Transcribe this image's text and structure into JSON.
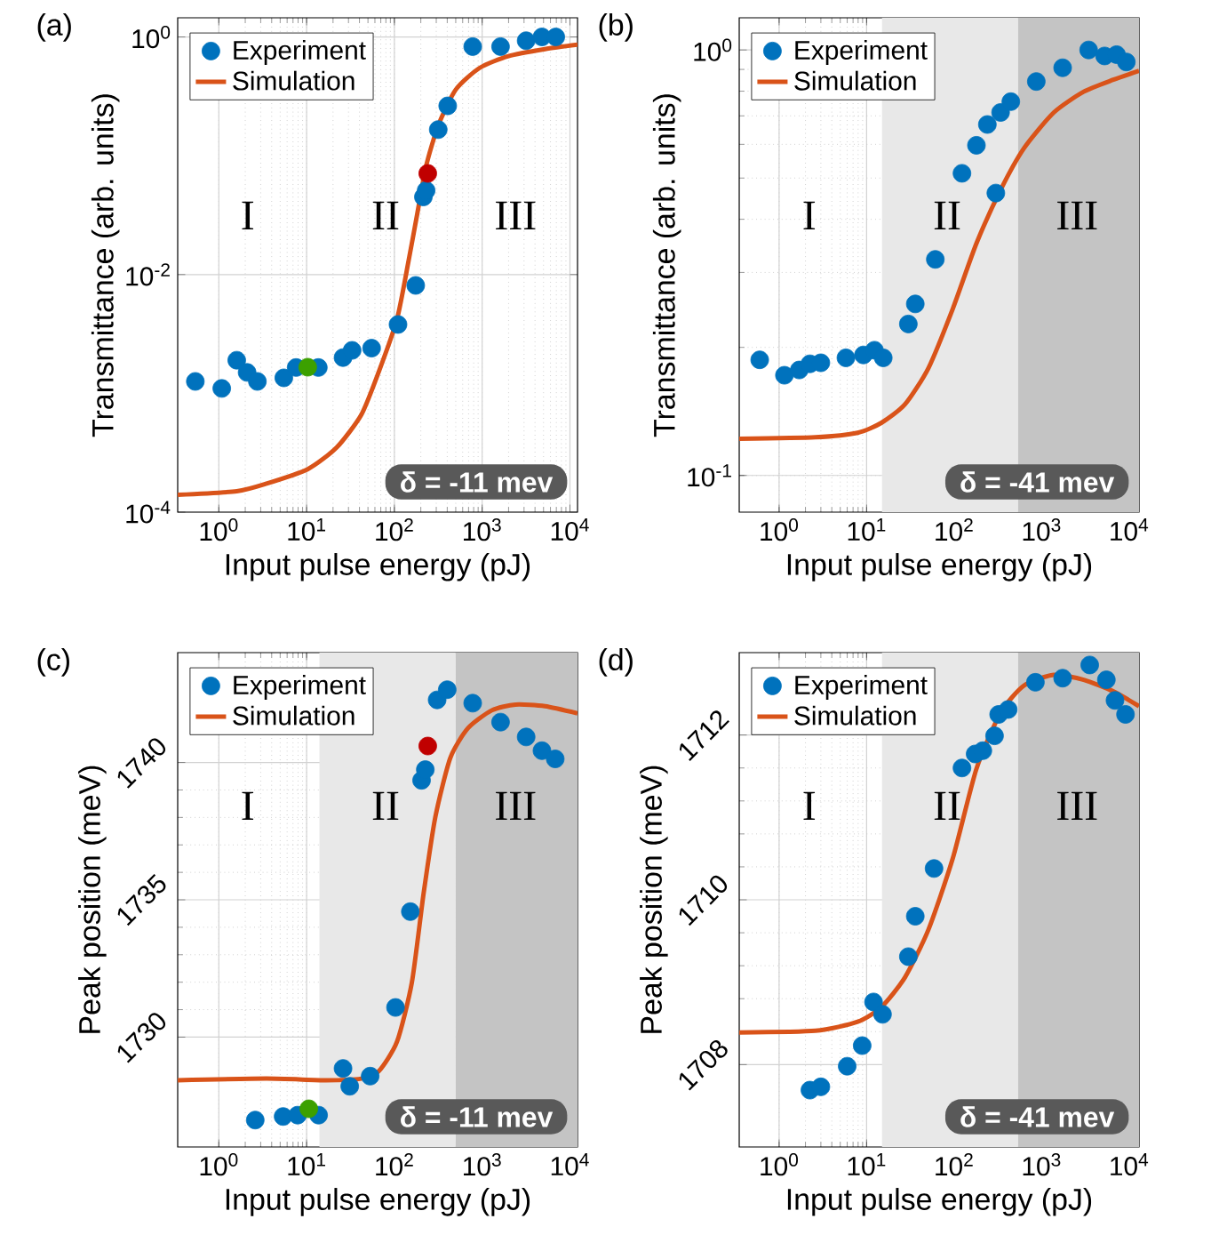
{
  "chart_data": [
    {
      "type": "scatter",
      "title": "(a)",
      "xlabel": "Input pulse energy (pJ)",
      "ylabel": "Transmittance (arb. units)",
      "log": "xy",
      "grid": true,
      "legend": "top left",
      "xlim": [
        0.34,
        12200
      ],
      "ylim": [
        0.0001,
        1.45
      ],
      "xticks": [
        {
          "value": 1,
          "label": "10$^{0}$"
        },
        {
          "value": 10,
          "label": "10$^{1}$"
        },
        {
          "value": 100,
          "label": "10$^{2}$"
        },
        {
          "value": 1000,
          "label": "10$^{3}$"
        },
        {
          "value": 10000,
          "label": "10$^{4}$"
        }
      ],
      "yticks": [
        {
          "value": 0.0001,
          "label": "10$^{-4}$"
        },
        {
          "value": 0.01,
          "label": "10$^{-2}$"
        },
        {
          "value": 1,
          "label": "10$^{0}$"
        }
      ],
      "series": [
        {
          "name": "Experiment",
          "type": "scatter",
          "color": "#0072bd",
          "x": [
            0.54,
            1.08,
            1.6,
            2.1,
            2.75,
            5.5,
            7.6,
            13.6,
            26,
            33,
            55,
            110,
            175,
            214,
            230,
            316,
            405,
            780,
            1620,
            3170,
            4800,
            6900
          ],
          "values": [
            0.00126,
            0.0011,
            0.0019,
            0.0015,
            0.00126,
            0.00135,
            0.00165,
            0.00165,
            0.002,
            0.0023,
            0.0024,
            0.0038,
            0.0081,
            0.045,
            0.051,
            0.166,
            0.263,
            0.83,
            0.83,
            0.93,
            1,
            1
          ]
        },
        {
          "name": "Simulation",
          "type": "line",
          "color": "#d95319",
          "x": [
            0.34,
            1.6,
            3.5,
            10.3,
            22,
            42,
            66,
            107,
            145,
            183,
            230,
            316,
            500,
            940,
            2000,
            5200,
            12200
          ],
          "values": [
            0.00014,
            0.00015,
            0.000174,
            0.00023,
            0.00035,
            0.00066,
            0.0015,
            0.0042,
            0.013,
            0.033,
            0.082,
            0.18,
            0.36,
            0.55,
            0.69,
            0.79,
            0.86
          ]
        },
        {
          "type": "scatter",
          "color": "#3ca000",
          "x": [
            10.3
          ],
          "values": [
            0.00166
          ]
        },
        {
          "type": "scatter",
          "color": "#c00000",
          "x": [
            240
          ],
          "values": [
            0.071
          ]
        }
      ],
      "annotations": [
        "I",
        "II",
        "III",
        "δ = -11 mev"
      ]
    },
    {
      "type": "scatter",
      "title": "(b)",
      "xlabel": "Input pulse energy (pJ)",
      "ylabel": "Transmittance (arb. units)",
      "log": "xy",
      "grid": true,
      "legend": "top left",
      "xlim": [
        0.35,
        13000
      ],
      "ylim": [
        0.082,
        1.19
      ],
      "xticks": [
        {
          "value": 1,
          "label": "10$^{0}$"
        },
        {
          "value": 10,
          "label": "10$^{1}$"
        },
        {
          "value": 100,
          "label": "10$^{2}$"
        },
        {
          "value": 1000,
          "label": "10$^{3}$"
        },
        {
          "value": 10000,
          "label": "10$^{4}$"
        }
      ],
      "yticks": [
        {
          "value": 0.1,
          "label": "10$^{-1}$"
        },
        {
          "value": 1,
          "label": "10$^{0}$"
        }
      ],
      "bands": [
        {
          "axis": "x",
          "from": 15,
          "to": 540,
          "color": "#e8e8e8"
        },
        {
          "axis": "x",
          "from": 540,
          "to": 13000,
          "color": "#c4c4c4"
        }
      ],
      "series": [
        {
          "name": "Experiment",
          "type": "scatter",
          "color": "#0072bd",
          "x": [
            0.6,
            1.15,
            1.7,
            2.25,
            3.0,
            5.8,
            9.2,
            12.3,
            15.5,
            30,
            36,
            61,
            123,
            180,
            240,
            300,
            340,
            445,
            870,
            1740,
            3450,
            5250,
            7200,
            9300
          ],
          "values": [
            0.187,
            0.172,
            0.177,
            0.183,
            0.184,
            0.189,
            0.192,
            0.197,
            0.189,
            0.227,
            0.253,
            0.322,
            0.513,
            0.597,
            0.668,
            0.461,
            0.713,
            0.756,
            0.843,
            0.908,
            1.0,
            0.968,
            0.975,
            0.937
          ]
        },
        {
          "name": "Simulation",
          "type": "line",
          "color": "#d95319",
          "x": [
            0.35,
            2.6,
            7.9,
            14.8,
            27.5,
            51,
            97,
            180,
            340,
            630,
            1380,
            3030,
            6600,
            13000
          ],
          "values": [
            0.122,
            0.123,
            0.126,
            0.133,
            0.147,
            0.179,
            0.247,
            0.351,
            0.469,
            0.588,
            0.713,
            0.798,
            0.851,
            0.893
          ]
        }
      ],
      "annotations": [
        "I",
        "II",
        "III",
        "δ = -41 mev"
      ]
    },
    {
      "type": "scatter",
      "title": "(c)",
      "xlabel": "Input pulse energy (pJ)",
      "ylabel": "Peak position (meV)",
      "log": "x",
      "grid": true,
      "legend": "top left",
      "xlim": [
        0.34,
        12200
      ],
      "ylim": [
        1726,
        1744
      ],
      "xticks": [
        {
          "value": 1,
          "label": "10$^{0}$"
        },
        {
          "value": 10,
          "label": "10$^{1}$"
        },
        {
          "value": 100,
          "label": "10$^{2}$"
        },
        {
          "value": 1000,
          "label": "10$^{3}$"
        },
        {
          "value": 10000,
          "label": "10$^{4}$"
        }
      ],
      "yticks": [
        1730,
        1735,
        1740
      ],
      "bands": [
        {
          "axis": "x",
          "from": 14,
          "to": 500,
          "color": "#e8e8e8"
        },
        {
          "axis": "x",
          "from": 500,
          "to": 12200,
          "color": "#c4c4c4"
        }
      ],
      "series": [
        {
          "name": "Experiment",
          "type": "scatter",
          "color": "#0072bd",
          "x": [
            2.6,
            5.4,
            7.9,
            13.7,
            26,
            31,
            53,
            103,
            152,
            204,
            225,
            307,
            400,
            780,
            1620,
            3170,
            4800,
            6800
          ],
          "values": [
            1726.98,
            1727.11,
            1727.16,
            1727.16,
            1728.86,
            1728.21,
            1728.58,
            1731.08,
            1734.57,
            1739.35,
            1739.74,
            1742.28,
            1742.65,
            1742.16,
            1741.47,
            1740.93,
            1740.43,
            1740.13
          ]
        },
        {
          "name": "Simulation",
          "type": "line",
          "color": "#d95319",
          "x": [
            0.34,
            3.5,
            16.5,
            42,
            66,
            107,
            158,
            215,
            293,
            434,
            690,
            1290,
            2400,
            5200,
            12200
          ],
          "values": [
            1728.43,
            1728.49,
            1728.43,
            1728.49,
            1728.75,
            1729.83,
            1731.98,
            1735.22,
            1738.02,
            1740.17,
            1741.25,
            1741.9,
            1742.11,
            1742.05,
            1741.79
          ]
        },
        {
          "type": "scatter",
          "color": "#3ca000",
          "x": [
            10.6
          ],
          "values": [
            1727.39
          ]
        },
        {
          "type": "scatter",
          "color": "#c00000",
          "x": [
            240
          ],
          "values": [
            1740.6
          ]
        }
      ],
      "annotations": [
        "I",
        "II",
        "III",
        "δ = -11 mev"
      ]
    },
    {
      "type": "scatter",
      "title": "(d)",
      "xlabel": "Input pulse energy (pJ)",
      "ylabel": "Peak position (meV)",
      "log": "x",
      "grid": true,
      "legend": "top left",
      "xlim": [
        0.35,
        13000
      ],
      "ylim": [
        1707,
        1713
      ],
      "xticks": [
        {
          "value": 1,
          "label": "10$^{0}$"
        },
        {
          "value": 10,
          "label": "10$^{1}$"
        },
        {
          "value": 100,
          "label": "10$^{2}$"
        },
        {
          "value": 1000,
          "label": "10$^{3}$"
        },
        {
          "value": 10000,
          "label": "10$^{4}$"
        }
      ],
      "yticks": [
        1708,
        1710,
        1712
      ],
      "bands": [
        {
          "axis": "x",
          "from": 15,
          "to": 540,
          "color": "#e8e8e8"
        },
        {
          "axis": "x",
          "from": 540,
          "to": 13000,
          "color": "#c4c4c4"
        }
      ],
      "series": [
        {
          "name": "Experiment",
          "type": "scatter",
          "color": "#0072bd",
          "x": [
            2.25,
            3.0,
            6.0,
            8.9,
            12.0,
            15.2,
            30,
            36,
            59,
            123,
            174,
            213,
            290,
            323,
            415,
            850,
            1740,
            3550,
            5500,
            6900,
            9100
          ],
          "values": [
            1707.69,
            1707.73,
            1707.98,
            1708.23,
            1708.76,
            1708.61,
            1709.31,
            1709.8,
            1710.38,
            1711.6,
            1711.77,
            1711.81,
            1711.99,
            1712.25,
            1712.31,
            1712.64,
            1712.69,
            1712.85,
            1712.67,
            1712.42,
            1712.25
          ]
        },
        {
          "name": "Simulation",
          "type": "line",
          "color": "#d95319",
          "x": [
            0.35,
            2.6,
            7.9,
            14.8,
            27.5,
            51,
            97,
            180,
            340,
            630,
            1380,
            3030,
            6600,
            13000
          ],
          "values": [
            1708.39,
            1708.41,
            1708.52,
            1708.7,
            1709.06,
            1709.64,
            1710.51,
            1711.59,
            1712.27,
            1712.6,
            1712.73,
            1712.67,
            1712.53,
            1712.35
          ]
        }
      ],
      "annotations": [
        "I",
        "II",
        "III",
        "δ = -41 mev"
      ]
    }
  ]
}
